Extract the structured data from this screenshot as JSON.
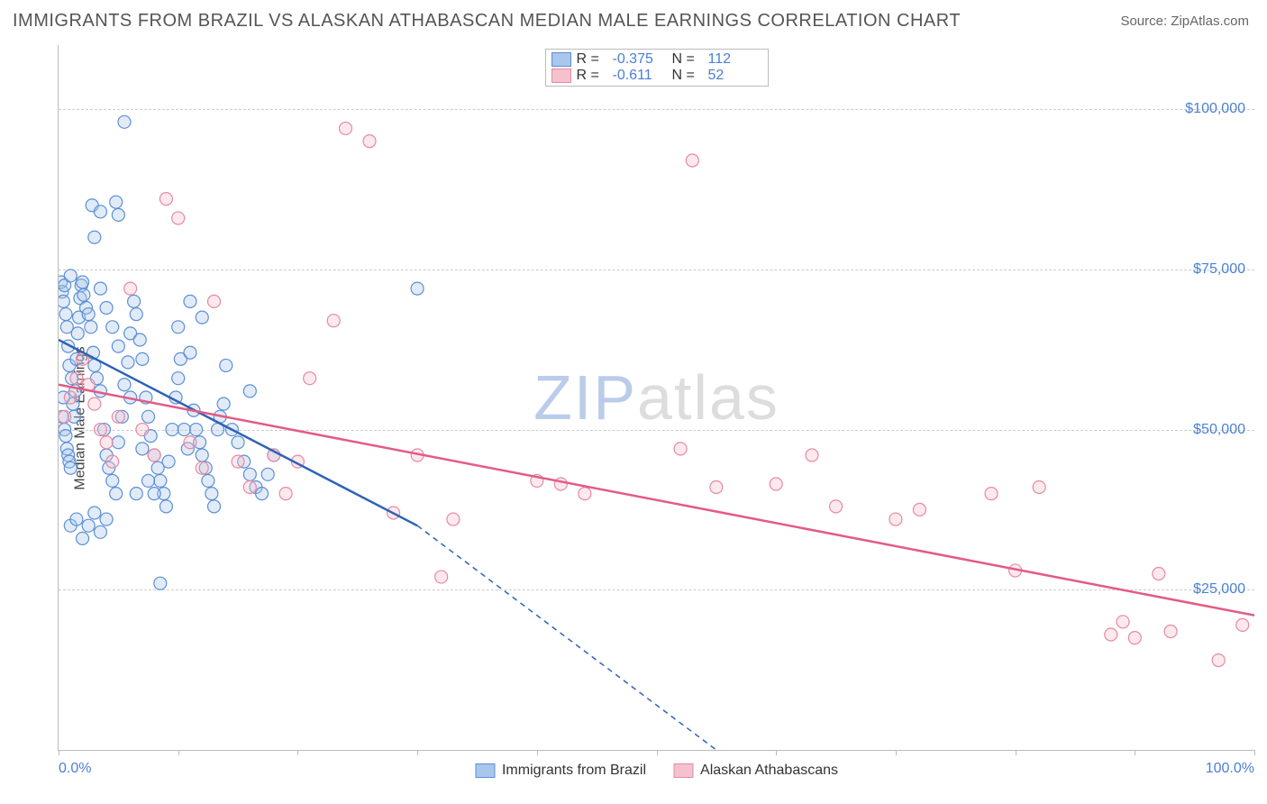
{
  "header": {
    "title": "IMMIGRANTS FROM BRAZIL VS ALASKAN ATHABASCAN MEDIAN MALE EARNINGS CORRELATION CHART",
    "source": "Source: ZipAtlas.com"
  },
  "watermark": {
    "part1": "ZIP",
    "part2": "atlas"
  },
  "chart": {
    "type": "scatter",
    "y_axis_label": "Median Male Earnings",
    "xlim": [
      0,
      100
    ],
    "ylim": [
      0,
      110000
    ],
    "x_ticks": [
      0,
      10,
      20,
      30,
      40,
      50,
      60,
      70,
      80,
      90,
      100
    ],
    "x_tick_labels": {
      "0": "0.0%",
      "100": "100.0%"
    },
    "y_ticks": [
      25000,
      50000,
      75000,
      100000
    ],
    "y_tick_labels": [
      "$25,000",
      "$50,000",
      "$75,000",
      "$100,000"
    ],
    "grid_color": "#cccccc",
    "axis_color": "#bbbbbb",
    "background_color": "#ffffff",
    "tick_label_color": "#4a7fd6",
    "label_fontsize": 16,
    "marker_radius": 7,
    "marker_stroke_width": 1.2,
    "fill_opacity": 0.35,
    "series": [
      {
        "name": "Immigrants from Brazil",
        "color_stroke": "#5b8fd6",
        "color_fill": "#a9c6ec",
        "line_color": "#2f62b6",
        "R": "-0.375",
        "N": "112",
        "regression": {
          "x1": 0,
          "y1": 64000,
          "x2": 30,
          "y2": 35000,
          "dash_x2": 55,
          "dash_y2": 0
        },
        "points": [
          [
            0.2,
            73000
          ],
          [
            0.3,
            71500
          ],
          [
            0.4,
            70000
          ],
          [
            0.5,
            72500
          ],
          [
            0.6,
            68000
          ],
          [
            0.7,
            66000
          ],
          [
            0.8,
            63000
          ],
          [
            0.9,
            60000
          ],
          [
            1.0,
            74000
          ],
          [
            1.1,
            58000
          ],
          [
            1.2,
            54000
          ],
          [
            1.3,
            52000
          ],
          [
            1.4,
            56000
          ],
          [
            1.5,
            61000
          ],
          [
            1.6,
            65000
          ],
          [
            1.7,
            67500
          ],
          [
            1.8,
            70500
          ],
          [
            1.9,
            72500
          ],
          [
            0.3,
            52000
          ],
          [
            0.4,
            55000
          ],
          [
            0.5,
            50000
          ],
          [
            0.6,
            49000
          ],
          [
            0.7,
            47000
          ],
          [
            0.8,
            46000
          ],
          [
            0.9,
            45000
          ],
          [
            1.0,
            44000
          ],
          [
            2.0,
            73000
          ],
          [
            2.1,
            71000
          ],
          [
            2.3,
            69000
          ],
          [
            2.5,
            68000
          ],
          [
            2.7,
            66000
          ],
          [
            2.9,
            62000
          ],
          [
            3.0,
            60000
          ],
          [
            3.2,
            58000
          ],
          [
            3.5,
            56000
          ],
          [
            3.8,
            50000
          ],
          [
            4.0,
            46000
          ],
          [
            4.2,
            44000
          ],
          [
            4.5,
            42000
          ],
          [
            4.8,
            40000
          ],
          [
            5.0,
            48000
          ],
          [
            5.3,
            52000
          ],
          [
            5.5,
            57000
          ],
          [
            5.8,
            60500
          ],
          [
            6.0,
            65000
          ],
          [
            6.3,
            70000
          ],
          [
            6.5,
            68000
          ],
          [
            6.8,
            64000
          ],
          [
            7.0,
            61000
          ],
          [
            7.3,
            55000
          ],
          [
            7.5,
            52000
          ],
          [
            7.7,
            49000
          ],
          [
            8.0,
            46000
          ],
          [
            8.3,
            44000
          ],
          [
            8.5,
            42000
          ],
          [
            8.8,
            40000
          ],
          [
            9.0,
            38000
          ],
          [
            9.2,
            45000
          ],
          [
            9.5,
            50000
          ],
          [
            9.8,
            55000
          ],
          [
            10.0,
            58000
          ],
          [
            10.2,
            61000
          ],
          [
            10.5,
            50000
          ],
          [
            10.8,
            47000
          ],
          [
            11.0,
            70000
          ],
          [
            11.3,
            53000
          ],
          [
            11.5,
            50000
          ],
          [
            11.8,
            48000
          ],
          [
            12.0,
            46000
          ],
          [
            12.3,
            44000
          ],
          [
            12.5,
            42000
          ],
          [
            12.8,
            40000
          ],
          [
            13.0,
            38000
          ],
          [
            13.3,
            50000
          ],
          [
            13.5,
            52000
          ],
          [
            13.8,
            54000
          ],
          [
            14.0,
            60000
          ],
          [
            14.5,
            50000
          ],
          [
            15.0,
            48000
          ],
          [
            15.5,
            45000
          ],
          [
            16.0,
            43000
          ],
          [
            16.5,
            41000
          ],
          [
            17.0,
            40000
          ],
          [
            17.5,
            43000
          ],
          [
            18.0,
            46000
          ],
          [
            2.8,
            85000
          ],
          [
            3.5,
            84000
          ],
          [
            5.5,
            98000
          ],
          [
            4.8,
            85500
          ],
          [
            5.0,
            83500
          ],
          [
            3.0,
            80000
          ],
          [
            3.5,
            72000
          ],
          [
            4.0,
            69000
          ],
          [
            4.5,
            66000
          ],
          [
            5.0,
            63000
          ],
          [
            6.0,
            55000
          ],
          [
            7.0,
            47000
          ],
          [
            8.0,
            40000
          ],
          [
            1.0,
            35000
          ],
          [
            1.5,
            36000
          ],
          [
            2.0,
            33000
          ],
          [
            2.5,
            35000
          ],
          [
            3.0,
            37000
          ],
          [
            3.5,
            34000
          ],
          [
            4.0,
            36000
          ],
          [
            8.5,
            26000
          ],
          [
            6.5,
            40000
          ],
          [
            7.5,
            42000
          ],
          [
            16.0,
            56000
          ],
          [
            10.0,
            66000
          ],
          [
            11.0,
            62000
          ],
          [
            12.0,
            67500
          ],
          [
            30.0,
            72000
          ]
        ]
      },
      {
        "name": "Alaskan Athabascans",
        "color_stroke": "#e68aa2",
        "color_fill": "#f6c1ce",
        "line_color": "#e35b84",
        "R": "-0.611",
        "N": "52",
        "regression": {
          "x1": 0,
          "y1": 57000,
          "x2": 100,
          "y2": 21000
        },
        "points": [
          [
            0.5,
            52000
          ],
          [
            1.0,
            55000
          ],
          [
            1.5,
            58000
          ],
          [
            2.0,
            61000
          ],
          [
            2.5,
            57000
          ],
          [
            3.0,
            54000
          ],
          [
            3.5,
            50000
          ],
          [
            4.0,
            48000
          ],
          [
            4.5,
            45000
          ],
          [
            5.0,
            52000
          ],
          [
            6.0,
            72000
          ],
          [
            7.0,
            50000
          ],
          [
            8.0,
            46000
          ],
          [
            9.0,
            86000
          ],
          [
            10.0,
            83000
          ],
          [
            11.0,
            48000
          ],
          [
            12.0,
            44000
          ],
          [
            13.0,
            70000
          ],
          [
            15.0,
            45000
          ],
          [
            16.0,
            41000
          ],
          [
            18.0,
            46000
          ],
          [
            19.0,
            40000
          ],
          [
            20.0,
            45000
          ],
          [
            21.0,
            58000
          ],
          [
            23.0,
            67000
          ],
          [
            24.0,
            97000
          ],
          [
            26.0,
            95000
          ],
          [
            28.0,
            37000
          ],
          [
            30.0,
            46000
          ],
          [
            32.0,
            27000
          ],
          [
            33.0,
            36000
          ],
          [
            40.0,
            42000
          ],
          [
            42.0,
            41500
          ],
          [
            44.0,
            40000
          ],
          [
            52.0,
            47000
          ],
          [
            53.0,
            92000
          ],
          [
            55.0,
            41000
          ],
          [
            60.0,
            41500
          ],
          [
            63.0,
            46000
          ],
          [
            65.0,
            38000
          ],
          [
            70.0,
            36000
          ],
          [
            72.0,
            37500
          ],
          [
            78.0,
            40000
          ],
          [
            80.0,
            28000
          ],
          [
            82.0,
            41000
          ],
          [
            88.0,
            18000
          ],
          [
            89.0,
            20000
          ],
          [
            90.0,
            17500
          ],
          [
            92.0,
            27500
          ],
          [
            93.0,
            18500
          ],
          [
            97.0,
            14000
          ],
          [
            99.0,
            19500
          ]
        ]
      }
    ],
    "legend_bottom_labels": [
      "Immigrants from Brazil",
      "Alaskan Athabascans"
    ]
  }
}
